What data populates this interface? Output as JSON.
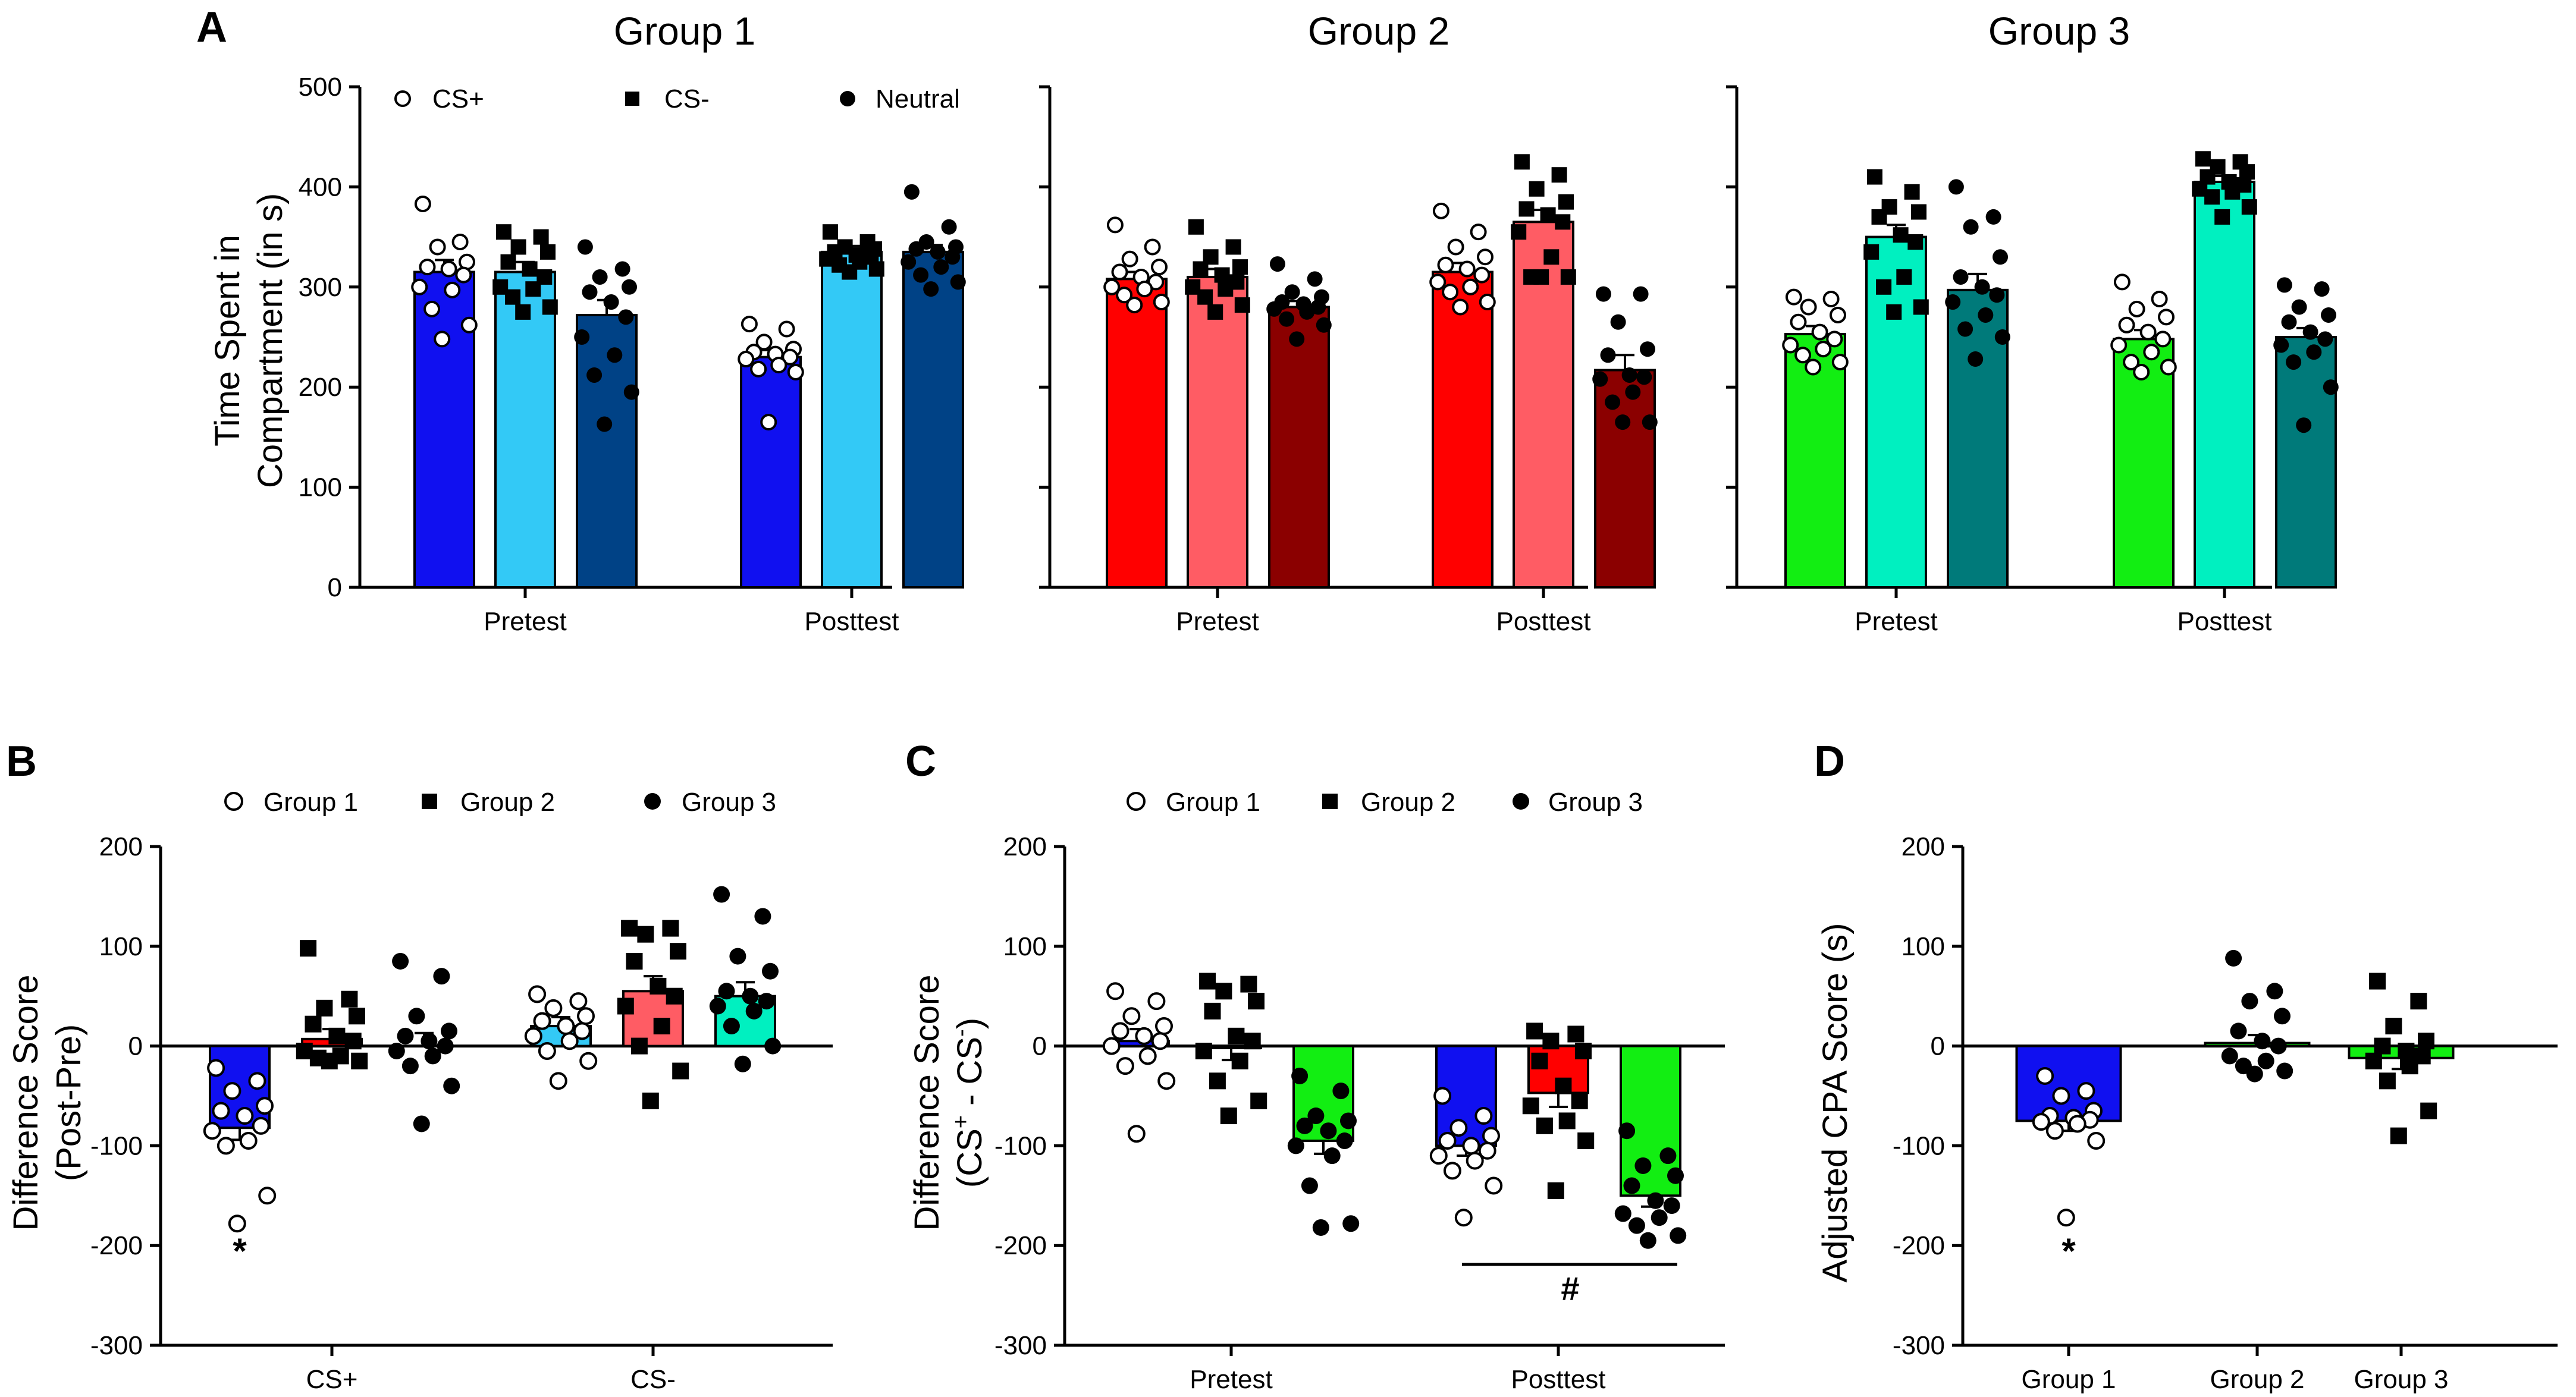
{
  "figure": {
    "letters": {
      "A": "A",
      "B": "B",
      "C": "C",
      "D": "D"
    }
  },
  "colors": {
    "g1": [
      "#1010f0",
      "#33c9f6",
      "#004286"
    ],
    "g2": [
      "#ff0000",
      "#ff5c64",
      "#8b0000"
    ],
    "g3": [
      "#12ee12",
      "#00f0c0",
      "#007a7a"
    ]
  },
  "panelA": {
    "ylabel_line1": "Time Spent in",
    "ylabel_line2": "Compartment (in s)",
    "ylim": [
      0,
      500
    ],
    "yticks": [
      "0",
      "100",
      "200",
      "300",
      "400",
      "500"
    ],
    "legend": [
      {
        "label": "CS+",
        "marker": "circle-open"
      },
      {
        "label": "CS-",
        "marker": "square"
      },
      {
        "label": "Neutral",
        "marker": "circle-filled"
      }
    ],
    "categories": [
      "Pretest",
      "Posttest"
    ]
  },
  "chart_data": [
    {
      "type": "bar",
      "panel": "A",
      "title": "Group 1",
      "categories": [
        "Pretest",
        "Posttest"
      ],
      "ylim": [
        0,
        500
      ],
      "series": [
        {
          "name": "CS+",
          "values": [
            315,
            230
          ],
          "sem": [
            12,
            7
          ],
          "marker": "circle-open",
          "color": "#1010f0",
          "points": [
            [
              383,
              345,
              340,
              325,
              320,
              318,
              312,
              300,
              297,
              278,
              262,
              248
            ],
            [
              263,
              258,
              245,
              238,
              235,
              233,
              230,
              228,
              222,
              218,
              215,
              165
            ]
          ]
        },
        {
          "name": "CS-",
          "values": [
            315,
            335
          ],
          "sem": [
            10,
            6
          ],
          "marker": "square",
          "color": "#33c9f6",
          "points": [
            [
              355,
              350,
              340,
              335,
              325,
              318,
              310,
              300,
              298,
              290,
              280,
              275
            ],
            [
              355,
              345,
              340,
              338,
              335,
              332,
              330,
              328,
              325,
              322,
              318,
              315
            ]
          ]
        },
        {
          "name": "Neutral",
          "values": [
            272,
            335
          ],
          "sem": [
            15,
            7
          ],
          "marker": "circle-filled",
          "color": "#004286",
          "points": [
            [
              340,
              318,
              310,
              300,
              295,
              285,
              270,
              250,
              232,
              212,
              195,
              163
            ],
            [
              395,
              360,
              345,
              340,
              338,
              335,
              330,
              325,
              320,
              312,
              305,
              298
            ]
          ]
        }
      ]
    },
    {
      "type": "bar",
      "panel": "A",
      "title": "Group 2",
      "categories": [
        "Pretest",
        "Posttest"
      ],
      "ylim": [
        0,
        500
      ],
      "series": [
        {
          "name": "CS+",
          "values": [
            308,
            315
          ],
          "sem": [
            7,
            9
          ],
          "marker": "circle-open",
          "color": "#ff0000",
          "points": [
            [
              362,
              340,
              328,
              320,
              315,
              310,
              305,
              300,
              298,
              292,
              285,
              282
            ],
            [
              376,
              355,
              340,
              330,
              322,
              318,
              312,
              305,
              300,
              295,
              285,
              280
            ]
          ]
        },
        {
          "name": "CS-",
          "values": [
            310,
            365
          ],
          "sem": [
            8,
            12
          ],
          "marker": "square",
          "color": "#ff5c64",
          "points": [
            [
              360,
              340,
              330,
              320,
              318,
              312,
              305,
              300,
              298,
              290,
              282,
              275
            ],
            [
              425,
              412,
              398,
              385,
              378,
              372,
              365,
              355,
              330,
              310,
              310,
              310
            ]
          ]
        },
        {
          "name": "Neutral",
          "values": [
            280,
            217
          ],
          "sem": [
            6,
            15
          ],
          "marker": "circle-filled",
          "color": "#8b0000",
          "points": [
            [
              323,
              308,
              295,
              290,
              285,
              283,
              280,
              278,
              275,
              268,
              262,
              248
            ],
            [
              293,
              293,
              265,
              238,
              232,
              212,
              210,
              208,
              195,
              185,
              165,
              165
            ]
          ]
        }
      ]
    },
    {
      "type": "bar",
      "panel": "A",
      "title": "Group 3",
      "categories": [
        "Pretest",
        "Posttest"
      ],
      "ylim": [
        0,
        500
      ],
      "series": [
        {
          "name": "CS+",
          "values": [
            253,
            248
          ],
          "sem": [
            8,
            9
          ],
          "marker": "circle-open",
          "color": "#12ee12",
          "points": [
            [
              290,
              288,
              280,
              272,
              265,
              255,
              248,
              242,
              238,
              232,
              225,
              220
            ],
            [
              305,
              288,
              278,
              270,
              262,
              255,
              248,
              242,
              235,
              225,
              220,
              215
            ]
          ]
        },
        {
          "name": "CS-",
          "values": [
            350,
            405
          ],
          "sem": [
            12,
            6
          ],
          "marker": "square",
          "color": "#00f0c0",
          "points": [
            [
              410,
              395,
              380,
              375,
              370,
              352,
              345,
              335,
              310,
              300,
              280,
              275
            ],
            [
              428,
              425,
              420,
              415,
              410,
              405,
              402,
              398,
              395,
              390,
              380,
              370
            ]
          ]
        },
        {
          "name": "Neutral",
          "values": [
            297,
            250
          ],
          "sem": [
            16,
            9
          ],
          "marker": "circle-filled",
          "color": "#007a7a",
          "points": [
            [
              400,
              370,
              360,
              330,
              310,
              300,
              292,
              285,
              272,
              258,
              250,
              228
            ],
            [
              302,
              298,
              280,
              272,
              265,
              255,
              248,
              242,
              235,
              225,
              200,
              162
            ]
          ]
        }
      ]
    },
    {
      "type": "bar",
      "panel": "B",
      "title": "",
      "ylabel": "Difference Score (Post-Pre)",
      "categories": [
        "CS+",
        "CS-"
      ],
      "ylim": [
        -300,
        200
      ],
      "series": [
        {
          "name": "Group 1",
          "values": [
            -82,
            20
          ],
          "sem": [
            12,
            9
          ],
          "marker": "circle-open",
          "points": [
            [
              -22,
              -35,
              -45,
              -60,
              -65,
              -70,
              -80,
              -85,
              -95,
              -100,
              -150,
              -178
            ],
            [
              52,
              45,
              38,
              30,
              25,
              20,
              15,
              10,
              5,
              -5,
              -15,
              -35
            ]
          ]
        },
        {
          "name": "Group 2",
          "values": [
            7,
            55
          ],
          "sem": [
            10,
            15
          ],
          "marker": "square",
          "points": [
            [
              98,
              47,
              38,
              30,
              22,
              10,
              5,
              -5,
              -10,
              -12,
              -15,
              -15
            ],
            [
              118,
              118,
              112,
              95,
              85,
              60,
              50,
              40,
              20,
              0,
              -25,
              -55
            ]
          ]
        },
        {
          "name": "Group 3",
          "values": [
            0,
            50
          ],
          "sem": [
            13,
            14
          ],
          "marker": "circle-filled",
          "points": [
            [
              85,
              70,
              30,
              15,
              10,
              5,
              0,
              -5,
              -10,
              -20,
              -40,
              -78
            ],
            [
              152,
              130,
              90,
              75,
              55,
              50,
              45,
              40,
              35,
              20,
              0,
              -18
            ]
          ]
        }
      ]
    },
    {
      "type": "bar",
      "panel": "C",
      "title": "",
      "ylabel": "Difference Score",
      "categories": [
        "Pretest",
        "Posttest"
      ],
      "ylim": [
        -300,
        200
      ],
      "series": [
        {
          "name": "Group 1",
          "values": [
            5,
            -100
          ],
          "sem": [
            12,
            10
          ],
          "marker": "circle-open",
          "points": [
            [
              55,
              45,
              30,
              20,
              15,
              10,
              5,
              0,
              -10,
              -20,
              -35,
              -88
            ],
            [
              -50,
              -70,
              -82,
              -90,
              -95,
              -100,
              -105,
              -110,
              -115,
              -125,
              -140,
              -172
            ]
          ]
        },
        {
          "name": "Group 2",
          "values": [
            -2,
            -47
          ],
          "sem": [
            12,
            14
          ],
          "marker": "square",
          "points": [
            [
              65,
              62,
              55,
              45,
              35,
              10,
              5,
              -5,
              -15,
              -35,
              -55,
              -70
            ],
            [
              15,
              12,
              5,
              -5,
              -15,
              -40,
              -55,
              -60,
              -75,
              -80,
              -95,
              -145
            ]
          ]
        },
        {
          "name": "Group 3",
          "values": [
            -95,
            -150
          ],
          "sem": [
            13,
            11
          ],
          "marker": "circle-filled",
          "points": [
            [
              -30,
              -45,
              -70,
              -75,
              -80,
              -85,
              -95,
              -100,
              -110,
              -140,
              -178,
              -182
            ],
            [
              -85,
              -110,
              -120,
              -130,
              -140,
              -155,
              -160,
              -168,
              -172,
              -180,
              -190,
              -195
            ]
          ]
        }
      ],
      "annotations": [
        "#"
      ]
    },
    {
      "type": "bar",
      "panel": "D",
      "title": "",
      "ylabel": "Adjusted CPA Score (s)",
      "categories": [
        "Group 1",
        "Group 2",
        "Group 3"
      ],
      "ylim": [
        -300,
        200
      ],
      "series": [
        {
          "name": "CPA",
          "values": [
            -75,
            3,
            -12
          ],
          "sem": [
            10,
            8,
            11
          ],
          "markers": [
            "circle-open",
            "circle-filled",
            "square"
          ],
          "colors": [
            "#1010f0",
            "#12ee12",
            "#12ee12"
          ],
          "points": [
            [
              -30,
              -45,
              -50,
              -65,
              -70,
              -72,
              -74,
              -76,
              -78,
              -85,
              -95,
              -172
            ],
            [
              88,
              55,
              45,
              30,
              15,
              5,
              0,
              -10,
              -15,
              -20,
              -25,
              -28
            ],
            [
              65,
              45,
              20,
              5,
              0,
              -5,
              -10,
              -15,
              -20,
              -35,
              -65,
              -90
            ]
          ]
        }
      ]
    }
  ],
  "panelB": {
    "ylabel_line1": "Difference Score",
    "ylabel_line2": "(Post-Pre)",
    "yticks": [
      "-300",
      "-200",
      "-100",
      "0",
      "100",
      "200"
    ],
    "legend": [
      {
        "label": "Group 1",
        "marker": "circle-open"
      },
      {
        "label": "Group 2",
        "marker": "square"
      },
      {
        "label": "Group 3",
        "marker": "circle-filled"
      }
    ],
    "categories": [
      "CS+",
      "CS-"
    ],
    "star": "*"
  },
  "panelC": {
    "ylabel_line1": "Difference Score",
    "ylabel_line2_a": "(CS",
    "ylabel_line2_b": "+",
    "ylabel_line2_c": " - CS",
    "ylabel_line2_d": "-",
    "ylabel_line2_e": ")",
    "yticks": [
      "-300",
      "-200",
      "-100",
      "0",
      "100",
      "200"
    ],
    "legend": [
      {
        "label": "Group 1",
        "marker": "circle-open"
      },
      {
        "label": "Group 2",
        "marker": "square"
      },
      {
        "label": "Group 3",
        "marker": "circle-filled"
      }
    ],
    "categories": [
      "Pretest",
      "Posttest"
    ],
    "hash": "#"
  },
  "panelD": {
    "ylabel": "Adjusted CPA Score (s)",
    "yticks": [
      "-300",
      "-200",
      "-100",
      "0",
      "100",
      "200"
    ],
    "categories": [
      "Group 1",
      "Group 2",
      "Group 3"
    ],
    "star": "*"
  }
}
